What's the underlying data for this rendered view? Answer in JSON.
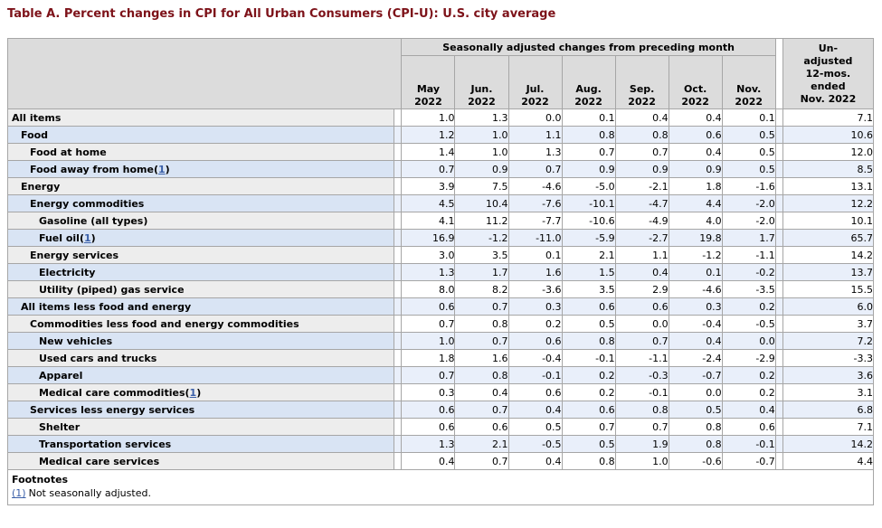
{
  "title": "Table A. Percent changes in CPI for All Urban Consumers (CPI-U): U.S. city average",
  "colors": {
    "title_text": "#7d1219",
    "link": "#3a5fa8",
    "header_bg": "#dcdcdc",
    "stub_row_gray": "#ededed",
    "stub_row_blue": "#d9e4f4",
    "data_row_white": "#ffffff",
    "data_row_blue": "#e9effa",
    "border": "#a6a6a6"
  },
  "table": {
    "seasonal_header": "Seasonally adjusted changes from preceding month",
    "unadjusted_header_lines": [
      "Un-",
      "adjusted",
      "12-mos.",
      "ended",
      "Nov. 2022"
    ],
    "columns": [
      {
        "month": "May",
        "year": "2022"
      },
      {
        "month": "Jun.",
        "year": "2022"
      },
      {
        "month": "Jul.",
        "year": "2022"
      },
      {
        "month": "Aug.",
        "year": "2022"
      },
      {
        "month": "Sep.",
        "year": "2022"
      },
      {
        "month": "Oct.",
        "year": "2022"
      },
      {
        "month": "Nov.",
        "year": "2022"
      }
    ],
    "rows": [
      {
        "label": "All items",
        "indent": 0,
        "values": [
          "1.0",
          "1.3",
          "0.0",
          "0.1",
          "0.4",
          "0.4",
          "0.1"
        ],
        "yr12": "7.1"
      },
      {
        "label": "Food",
        "indent": 1,
        "values": [
          "1.2",
          "1.0",
          "1.1",
          "0.8",
          "0.8",
          "0.6",
          "0.5"
        ],
        "yr12": "10.6"
      },
      {
        "label": "Food at home",
        "indent": 2,
        "values": [
          "1.4",
          "1.0",
          "1.3",
          "0.7",
          "0.7",
          "0.4",
          "0.5"
        ],
        "yr12": "12.0"
      },
      {
        "label": "Food away from home",
        "footnote_ref": "1",
        "indent": 2,
        "values": [
          "0.7",
          "0.9",
          "0.7",
          "0.9",
          "0.9",
          "0.9",
          "0.5"
        ],
        "yr12": "8.5"
      },
      {
        "label": "Energy",
        "indent": 1,
        "values": [
          "3.9",
          "7.5",
          "-4.6",
          "-5.0",
          "-2.1",
          "1.8",
          "-1.6"
        ],
        "yr12": "13.1"
      },
      {
        "label": "Energy commodities",
        "indent": 2,
        "values": [
          "4.5",
          "10.4",
          "-7.6",
          "-10.1",
          "-4.7",
          "4.4",
          "-2.0"
        ],
        "yr12": "12.2"
      },
      {
        "label": "Gasoline (all types)",
        "indent": 3,
        "values": [
          "4.1",
          "11.2",
          "-7.7",
          "-10.6",
          "-4.9",
          "4.0",
          "-2.0"
        ],
        "yr12": "10.1"
      },
      {
        "label": "Fuel oil",
        "footnote_ref": "1",
        "indent": 3,
        "values": [
          "16.9",
          "-1.2",
          "-11.0",
          "-5.9",
          "-2.7",
          "19.8",
          "1.7"
        ],
        "yr12": "65.7"
      },
      {
        "label": "Energy services",
        "indent": 2,
        "values": [
          "3.0",
          "3.5",
          "0.1",
          "2.1",
          "1.1",
          "-1.2",
          "-1.1"
        ],
        "yr12": "14.2"
      },
      {
        "label": "Electricity",
        "indent": 3,
        "values": [
          "1.3",
          "1.7",
          "1.6",
          "1.5",
          "0.4",
          "0.1",
          "-0.2"
        ],
        "yr12": "13.7"
      },
      {
        "label": "Utility (piped) gas service",
        "indent": 3,
        "values": [
          "8.0",
          "8.2",
          "-3.6",
          "3.5",
          "2.9",
          "-4.6",
          "-3.5"
        ],
        "yr12": "15.5"
      },
      {
        "label": "All items less food and energy",
        "indent": 1,
        "values": [
          "0.6",
          "0.7",
          "0.3",
          "0.6",
          "0.6",
          "0.3",
          "0.2"
        ],
        "yr12": "6.0"
      },
      {
        "label": "Commodities less food and energy commodities",
        "indent": 2,
        "values": [
          "0.7",
          "0.8",
          "0.2",
          "0.5",
          "0.0",
          "-0.4",
          "-0.5"
        ],
        "yr12": "3.7"
      },
      {
        "label": "New vehicles",
        "indent": 3,
        "values": [
          "1.0",
          "0.7",
          "0.6",
          "0.8",
          "0.7",
          "0.4",
          "0.0"
        ],
        "yr12": "7.2"
      },
      {
        "label": "Used cars and trucks",
        "indent": 3,
        "values": [
          "1.8",
          "1.6",
          "-0.4",
          "-0.1",
          "-1.1",
          "-2.4",
          "-2.9"
        ],
        "yr12": "-3.3"
      },
      {
        "label": "Apparel",
        "indent": 3,
        "values": [
          "0.7",
          "0.8",
          "-0.1",
          "0.2",
          "-0.3",
          "-0.7",
          "0.2"
        ],
        "yr12": "3.6"
      },
      {
        "label": "Medical care commodities",
        "footnote_ref": "1",
        "indent": 3,
        "values": [
          "0.3",
          "0.4",
          "0.6",
          "0.2",
          "-0.1",
          "0.0",
          "0.2"
        ],
        "yr12": "3.1"
      },
      {
        "label": "Services less energy services",
        "indent": 2,
        "values": [
          "0.6",
          "0.7",
          "0.4",
          "0.6",
          "0.8",
          "0.5",
          "0.4"
        ],
        "yr12": "6.8"
      },
      {
        "label": "Shelter",
        "indent": 3,
        "values": [
          "0.6",
          "0.6",
          "0.5",
          "0.7",
          "0.7",
          "0.8",
          "0.6"
        ],
        "yr12": "7.1"
      },
      {
        "label": "Transportation services",
        "indent": 3,
        "values": [
          "1.3",
          "2.1",
          "-0.5",
          "0.5",
          "1.9",
          "0.8",
          "-0.1"
        ],
        "yr12": "14.2"
      },
      {
        "label": "Medical care services",
        "indent": 3,
        "values": [
          "0.4",
          "0.7",
          "0.4",
          "0.8",
          "1.0",
          "-0.6",
          "-0.7"
        ],
        "yr12": "4.4"
      }
    ],
    "footnotes": {
      "heading": "Footnotes",
      "items": [
        {
          "marker": "(1)",
          "text": "Not seasonally adjusted."
        }
      ]
    }
  }
}
